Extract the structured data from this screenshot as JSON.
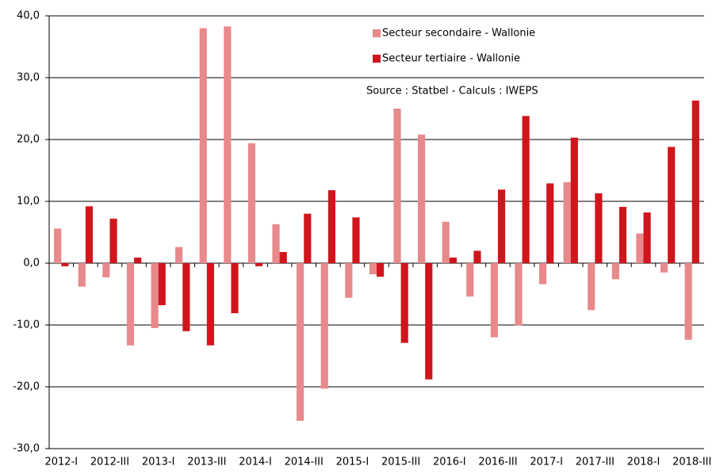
{
  "chart_data": {
    "type": "bar",
    "categories": [
      "2012-I",
      null,
      "2012-III",
      null,
      "2013-I",
      null,
      "2013-III",
      null,
      "2014-I",
      null,
      "2014-III",
      null,
      "2015-I",
      null,
      "2015-III",
      null,
      "2016-I",
      null,
      "2016-III",
      null,
      "2017-I",
      null,
      "2017-III",
      null,
      "2018-I",
      null,
      "2018-III"
    ],
    "series": [
      {
        "name": "Secteur secondaire - Wallonie",
        "color": "#e8898b",
        "values": [
          5.6,
          -3.8,
          -2.3,
          -13.3,
          -10.5,
          2.6,
          38.0,
          38.3,
          19.4,
          6.3,
          -25.5,
          -20.3,
          -5.6,
          -1.8,
          25.0,
          20.8,
          6.7,
          -5.4,
          -12.0,
          -10.1,
          -3.4,
          13.1,
          -7.6,
          -2.6,
          4.8,
          -1.5,
          -12.4
        ]
      },
      {
        "name": "Secteur tertiaire - Wallonie",
        "color": "#d0151d",
        "values": [
          -0.5,
          9.2,
          7.2,
          0.9,
          -6.8,
          -11.0,
          -13.3,
          -8.1,
          -0.5,
          1.8,
          8.0,
          11.8,
          7.4,
          -2.2,
          -12.9,
          -18.8,
          0.9,
          2.0,
          11.9,
          23.8,
          12.9,
          20.3,
          11.3,
          9.1,
          8.2,
          18.8,
          26.3
        ]
      }
    ],
    "annotation": "Source : Statbel - Calculs : IWEPS",
    "ylim": [
      -30,
      40
    ],
    "yticks": [
      {
        "value": -30,
        "label": "-30,0"
      },
      {
        "value": -20,
        "label": "-20,0"
      },
      {
        "value": -10,
        "label": "-10,0"
      },
      {
        "value": 0,
        "label": "0,0"
      },
      {
        "value": 10,
        "label": "10,0"
      },
      {
        "value": 20,
        "label": "20,0"
      },
      {
        "value": 30,
        "label": "30,0"
      },
      {
        "value": 40,
        "label": "40,0"
      }
    ],
    "grid": true
  }
}
